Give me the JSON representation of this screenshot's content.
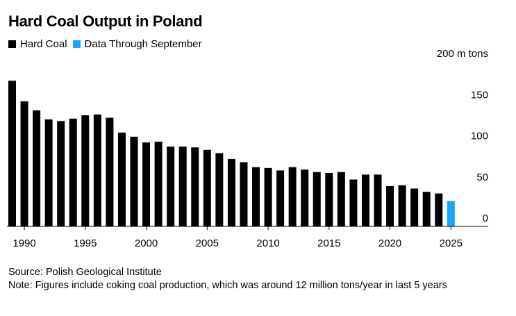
{
  "title": "Hard Coal Output in Poland",
  "legend": [
    {
      "label": "Hard Coal",
      "color": "#000000"
    },
    {
      "label": "Data Through September",
      "color": "#1aa3ff"
    }
  ],
  "source": "Source: Polish Geological Institute",
  "note": "Note: Figures include coking coal production, which was around 12 million tons/year in last 5 years",
  "chart_data": {
    "type": "bar",
    "title": "Hard Coal Output in Poland",
    "xlabel": "",
    "ylabel": "m tons",
    "ylim": [
      0,
      200
    ],
    "y_ticks": [
      {
        "value": 0,
        "label": "0"
      },
      {
        "value": 50,
        "label": "50"
      },
      {
        "value": 100,
        "label": "100"
      },
      {
        "value": 150,
        "label": "150"
      },
      {
        "value": 200,
        "label": "200 m tons"
      }
    ],
    "x_ticks": [
      {
        "value": 1990,
        "label": "1990"
      },
      {
        "value": 1995,
        "label": "1995"
      },
      {
        "value": 2000,
        "label": "2000"
      },
      {
        "value": 2005,
        "label": "2005"
      },
      {
        "value": 2010,
        "label": "2010"
      },
      {
        "value": 2015,
        "label": "2015"
      },
      {
        "value": 2020,
        "label": "2020"
      },
      {
        "value": 2025,
        "label": "2025"
      }
    ],
    "series": [
      {
        "name": "Hard Coal",
        "color": "#000000",
        "x": [
          1989,
          1990,
          1991,
          1992,
          1993,
          1994,
          1995,
          1996,
          1997,
          1998,
          1999,
          2000,
          2001,
          2002,
          2003,
          2004,
          2005,
          2006,
          2007,
          2008,
          2009,
          2010,
          2011,
          2012,
          2013,
          2014,
          2015,
          2016,
          2017,
          2018,
          2019,
          2020,
          2021,
          2022,
          2023,
          2024
        ],
        "values": [
          177,
          152,
          141,
          130,
          128,
          131,
          135,
          136,
          132,
          114,
          109,
          102,
          103,
          97,
          97,
          96,
          93,
          89,
          82,
          78,
          72,
          71,
          68,
          72,
          69,
          66,
          65,
          66,
          57,
          63,
          63,
          49,
          50,
          46,
          42,
          40
        ]
      },
      {
        "name": "Data Through September",
        "color": "#1aa3ff",
        "x": [
          2025
        ],
        "values": [
          31
        ]
      }
    ]
  }
}
